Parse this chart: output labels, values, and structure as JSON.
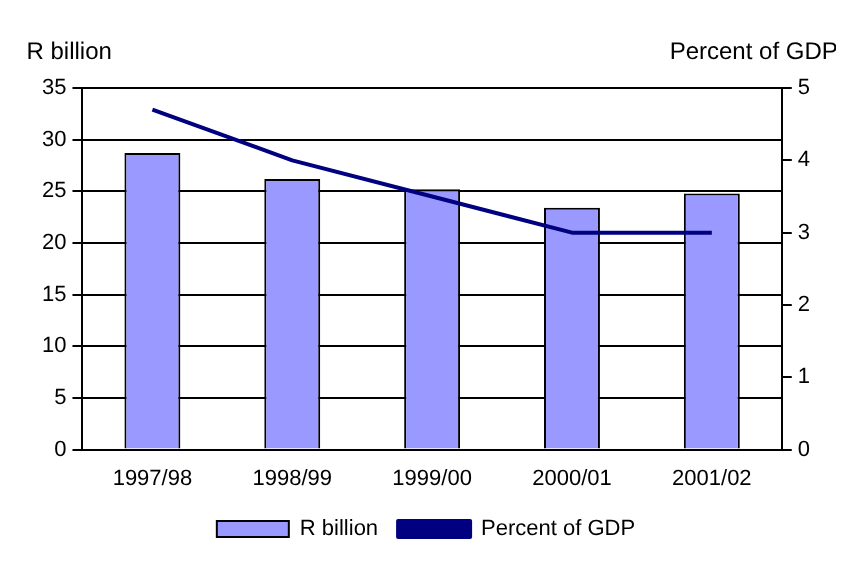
{
  "chart_data": {
    "type": "bar",
    "categories": [
      "1997/98",
      "1998/99",
      "1999/00",
      "2000/01",
      "2001/02"
    ],
    "ylabel": "R billion",
    "y2label": "Percent of GDP",
    "series": [
      {
        "name": "R billion",
        "color": "#9999ff",
        "values": [
          28.7,
          26.2,
          25.2,
          23.4,
          24.8
        ]
      },
      {
        "name": "Percent of GDP",
        "type": "line",
        "axis": "y2",
        "color": "#000080",
        "values": [
          4.7,
          4.0,
          3.5,
          3.0,
          3.0
        ]
      }
    ],
    "ylim": [
      0,
      35
    ],
    "yticks": [
      0,
      5,
      10,
      15,
      20,
      25,
      30,
      35
    ],
    "y2lim": [
      0,
      5
    ],
    "y2ticks": [
      0,
      1,
      2,
      3,
      4,
      5
    ],
    "grid": "y",
    "legend": "bottom",
    "marker": "none"
  }
}
